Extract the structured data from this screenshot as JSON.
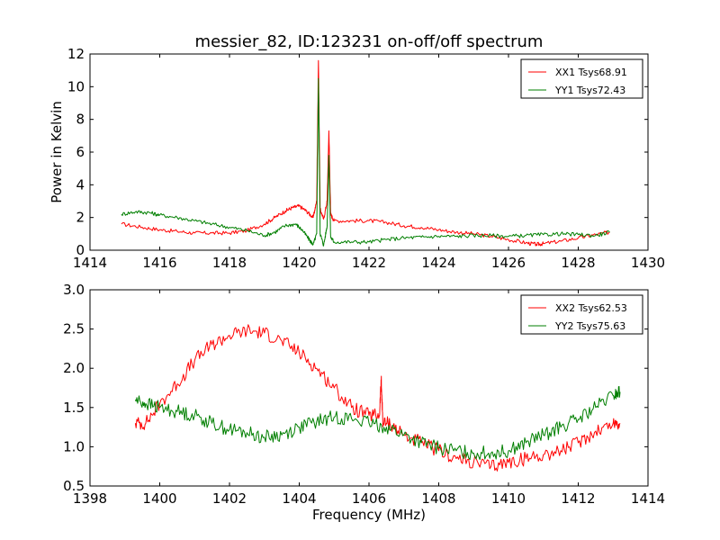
{
  "title": "messier_82, ID:123231 on-off/off spectrum",
  "colors": {
    "red": "#ff0000",
    "green": "#007f00"
  },
  "chart_data": [
    {
      "type": "line",
      "title": "messier_82, ID:123231 on-off/off spectrum",
      "xlabel": "",
      "ylabel": "Power in Kelvin",
      "xlim": [
        1414,
        1430
      ],
      "ylim": [
        0,
        12
      ],
      "xticks": [
        1414,
        1416,
        1418,
        1420,
        1422,
        1424,
        1426,
        1428,
        1430
      ],
      "yticks": [
        0,
        2,
        4,
        6,
        8,
        10,
        12
      ],
      "grid": false,
      "legend_position": "top-right",
      "series": [
        {
          "name": "XX1 Tsys68.91",
          "color": "#ff0000",
          "x": [
            1414.9,
            1415.5,
            1416.0,
            1416.5,
            1417.0,
            1417.5,
            1418.0,
            1418.5,
            1419.0,
            1419.3,
            1419.6,
            1419.8,
            1420.0,
            1420.2,
            1420.4,
            1420.5,
            1420.55,
            1420.6,
            1420.7,
            1420.8,
            1420.85,
            1420.9,
            1421.0,
            1421.5,
            1422.0,
            1422.5,
            1423.0,
            1423.5,
            1424.0,
            1424.5,
            1425.0,
            1425.5,
            1426.0,
            1426.5,
            1426.8,
            1427.0,
            1427.5,
            1428.0,
            1428.5,
            1428.9
          ],
          "y": [
            1.6,
            1.4,
            1.25,
            1.15,
            1.05,
            1.05,
            1.05,
            1.2,
            1.6,
            2.0,
            2.4,
            2.6,
            2.7,
            2.4,
            2.0,
            3.0,
            11.6,
            2.5,
            1.9,
            3.0,
            7.3,
            2.2,
            1.8,
            1.8,
            1.8,
            1.7,
            1.5,
            1.4,
            1.25,
            1.1,
            1.0,
            0.85,
            0.65,
            0.45,
            0.35,
            0.4,
            0.55,
            0.75,
            0.95,
            1.1
          ]
        },
        {
          "name": "YY1 Tsys72.43",
          "color": "#007f00",
          "x": [
            1414.9,
            1415.3,
            1415.7,
            1416.0,
            1416.5,
            1417.0,
            1417.5,
            1418.0,
            1418.5,
            1419.0,
            1419.3,
            1419.6,
            1419.9,
            1420.1,
            1420.3,
            1420.4,
            1420.5,
            1420.55,
            1420.6,
            1420.7,
            1420.8,
            1420.85,
            1420.9,
            1421.0,
            1421.5,
            1422.0,
            1422.5,
            1423.0,
            1423.5,
            1424.0,
            1424.5,
            1425.0,
            1425.5,
            1426.0,
            1426.5,
            1427.0,
            1427.5,
            1428.0,
            1428.5,
            1428.9
          ],
          "y": [
            2.2,
            2.35,
            2.3,
            2.15,
            2.0,
            1.8,
            1.6,
            1.4,
            1.2,
            0.9,
            1.1,
            1.5,
            1.6,
            1.2,
            0.6,
            0.35,
            1.0,
            10.5,
            1.0,
            0.3,
            1.5,
            5.8,
            0.8,
            0.5,
            0.5,
            0.5,
            0.65,
            0.75,
            0.8,
            0.85,
            0.85,
            0.9,
            0.9,
            0.85,
            0.9,
            0.95,
            1.0,
            0.95,
            0.9,
            1.1
          ]
        }
      ]
    },
    {
      "type": "line",
      "title": "",
      "xlabel": "Frequency (MHz)",
      "ylabel": "",
      "xlim": [
        1398,
        1414
      ],
      "ylim": [
        0.5,
        3.0
      ],
      "xticks": [
        1398,
        1400,
        1402,
        1404,
        1406,
        1408,
        1410,
        1412,
        1414
      ],
      "yticks": [
        0.5,
        1.0,
        1.5,
        2.0,
        2.5,
        3.0
      ],
      "grid": false,
      "legend_position": "top-right",
      "series": [
        {
          "name": "XX2 Tsys62.53",
          "color": "#ff0000",
          "x": [
            1399.3,
            1399.6,
            1400.0,
            1400.5,
            1401.0,
            1401.5,
            1402.0,
            1402.5,
            1403.0,
            1403.5,
            1404.0,
            1404.5,
            1405.0,
            1405.5,
            1406.0,
            1406.3,
            1406.35,
            1406.4,
            1406.6,
            1407.0,
            1407.5,
            1408.0,
            1408.5,
            1409.0,
            1409.5,
            1410.0,
            1410.5,
            1411.0,
            1411.5,
            1412.0,
            1412.5,
            1413.0,
            1413.2
          ],
          "y": [
            1.3,
            1.3,
            1.55,
            1.8,
            2.1,
            2.3,
            2.42,
            2.48,
            2.45,
            2.35,
            2.2,
            2.0,
            1.75,
            1.5,
            1.4,
            1.4,
            1.85,
            1.3,
            1.3,
            1.15,
            1.05,
            0.95,
            0.85,
            0.8,
            0.75,
            0.8,
            0.85,
            0.9,
            0.95,
            1.05,
            1.2,
            1.3,
            1.3
          ]
        },
        {
          "name": "YY2 Tsys75.63",
          "color": "#007f00",
          "x": [
            1399.3,
            1399.6,
            1400.0,
            1400.5,
            1401.0,
            1401.5,
            1402.0,
            1402.5,
            1403.0,
            1403.5,
            1404.0,
            1404.5,
            1405.0,
            1405.5,
            1406.0,
            1406.5,
            1407.0,
            1407.5,
            1408.0,
            1408.5,
            1409.0,
            1409.5,
            1410.0,
            1410.5,
            1411.0,
            1411.5,
            1412.0,
            1412.5,
            1413.0,
            1413.2
          ],
          "y": [
            1.6,
            1.55,
            1.5,
            1.45,
            1.4,
            1.3,
            1.22,
            1.18,
            1.12,
            1.15,
            1.25,
            1.32,
            1.38,
            1.36,
            1.3,
            1.25,
            1.15,
            1.05,
            0.98,
            0.95,
            0.92,
            0.92,
            0.95,
            1.05,
            1.15,
            1.25,
            1.35,
            1.5,
            1.65,
            1.7
          ]
        }
      ]
    }
  ]
}
